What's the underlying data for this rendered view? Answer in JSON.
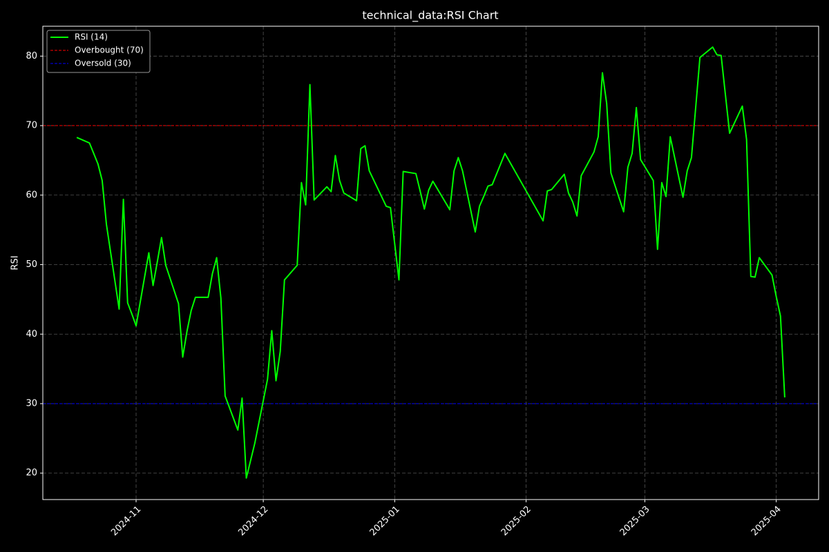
{
  "chart_data": {
    "type": "line",
    "title": "technical_data:RSI Chart",
    "y_label": "RSI",
    "x": [
      "2024-10-18",
      "2024-10-21",
      "2024-10-22",
      "2024-10-23",
      "2024-10-24",
      "2024-10-25",
      "2024-10-28",
      "2024-10-29",
      "2024-10-30",
      "2024-10-31",
      "2024-11-01",
      "2024-11-04",
      "2024-11-05",
      "2024-11-06",
      "2024-11-07",
      "2024-11-08",
      "2024-11-11",
      "2024-11-12",
      "2024-11-13",
      "2024-11-14",
      "2024-11-15",
      "2024-11-18",
      "2024-11-19",
      "2024-11-20",
      "2024-11-21",
      "2024-11-22",
      "2024-11-25",
      "2024-11-26",
      "2024-11-27",
      "2024-11-29",
      "2024-12-02",
      "2024-12-03",
      "2024-12-04",
      "2024-12-05",
      "2024-12-06",
      "2024-12-09",
      "2024-12-10",
      "2024-12-11",
      "2024-12-12",
      "2024-12-13",
      "2024-12-16",
      "2024-12-17",
      "2024-12-18",
      "2024-12-19",
      "2024-12-20",
      "2024-12-23",
      "2024-12-24",
      "2024-12-25",
      "2024-12-26",
      "2024-12-30",
      "2024-12-31",
      "2025-01-02",
      "2025-01-03",
      "2025-01-06",
      "2025-01-07",
      "2025-01-08",
      "2025-01-09",
      "2025-01-10",
      "2025-01-14",
      "2025-01-15",
      "2025-01-16",
      "2025-01-17",
      "2025-01-20",
      "2025-01-21",
      "2025-01-22",
      "2025-01-23",
      "2025-01-24",
      "2025-01-27",
      "2025-02-05",
      "2025-02-06",
      "2025-02-07",
      "2025-02-10",
      "2025-02-11",
      "2025-02-12",
      "2025-02-13",
      "2025-02-14",
      "2025-02-17",
      "2025-02-18",
      "2025-02-19",
      "2025-02-20",
      "2025-02-21",
      "2025-02-24",
      "2025-02-25",
      "2025-02-26",
      "2025-02-27",
      "2025-02-28",
      "2025-03-03",
      "2025-03-04",
      "2025-03-05",
      "2025-03-06",
      "2025-03-07",
      "2025-03-10",
      "2025-03-11",
      "2025-03-12",
      "2025-03-14",
      "2025-03-17",
      "2025-03-18",
      "2025-03-19",
      "2025-03-21",
      "2025-03-24",
      "2025-03-25",
      "2025-03-26",
      "2025-03-27",
      "2025-03-28",
      "2025-03-31",
      "2025-04-01",
      "2025-04-02",
      "2025-04-03"
    ],
    "series": [
      {
        "name": "RSI (14)",
        "color": "#00ff00",
        "values": [
          68.3,
          67.5,
          66.0,
          64.5,
          62.1,
          55.8,
          43.6,
          59.4,
          44.5,
          42.9,
          41.2,
          51.7,
          47.0,
          50.4,
          53.9,
          49.9,
          44.4,
          36.7,
          40.4,
          43.4,
          45.3,
          45.3,
          48.7,
          51.0,
          45.2,
          31.1,
          26.2,
          30.8,
          19.3,
          24.3,
          33.5,
          40.5,
          33.3,
          37.5,
          47.8,
          49.9,
          61.8,
          58.6,
          75.9,
          59.3,
          61.2,
          60.5,
          65.7,
          62.1,
          60.3,
          59.2,
          66.7,
          67.1,
          63.5,
          58.4,
          58.2,
          47.8,
          63.4,
          63.1,
          60.6,
          58.0,
          60.7,
          62.0,
          57.9,
          63.5,
          65.4,
          63.5,
          54.7,
          58.4,
          59.8,
          61.3,
          61.5,
          66.0,
          56.3,
          60.6,
          60.8,
          63.0,
          60.3,
          59.0,
          57.0,
          62.8,
          66.2,
          68.4,
          77.6,
          73.2,
          63.2,
          57.6,
          64.0,
          66.0,
          72.6,
          65.1,
          62.1,
          52.2,
          61.8,
          59.8,
          68.4,
          59.7,
          63.5,
          65.4,
          79.8,
          81.3,
          80.2,
          80.1,
          68.9,
          72.8,
          68.0,
          48.3,
          48.2,
          51.0,
          48.5,
          45.4,
          42.6,
          30.9
        ]
      }
    ],
    "hlines": [
      {
        "name": "Overbought (70)",
        "value": 70,
        "color": "#ff0000"
      },
      {
        "name": "Oversold (30)",
        "value": 30,
        "color": "#0000ff"
      }
    ],
    "xlim": [
      "2024-10-10",
      "2025-04-11"
    ],
    "xticks": [
      {
        "value": "2024-11-01",
        "label": "2024-11"
      },
      {
        "value": "2024-12-01",
        "label": "2024-12"
      },
      {
        "value": "2025-01-01",
        "label": "2025-01"
      },
      {
        "value": "2025-02-01",
        "label": "2025-02"
      },
      {
        "value": "2025-03-01",
        "label": "2025-03"
      },
      {
        "value": "2025-04-01",
        "label": "2025-04"
      }
    ],
    "ylim": [
      16.2,
      84.3
    ],
    "yticks": [
      20,
      30,
      40,
      50,
      60,
      70,
      80
    ],
    "grid": true,
    "legend_position": "upper-left"
  }
}
